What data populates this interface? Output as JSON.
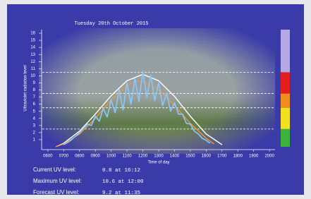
{
  "chart_data": {
    "type": "line",
    "title": "Tuesday 20th October 2015",
    "ylabel": "Ultraviolet radiation level",
    "xlabel": "Time of day",
    "xlim": [
      5.65,
      20.35
    ],
    "ylim": [
      0,
      16.5
    ],
    "xticks": [
      {
        "value": 6,
        "label": "0600"
      },
      {
        "value": 7,
        "label": "0700"
      },
      {
        "value": 8,
        "label": "0800"
      },
      {
        "value": 9,
        "label": "0900"
      },
      {
        "value": 10,
        "label": "1000"
      },
      {
        "value": 11,
        "label": "1100"
      },
      {
        "value": 12,
        "label": "1200"
      },
      {
        "value": 13,
        "label": "1300"
      },
      {
        "value": 14,
        "label": "1400"
      },
      {
        "value": 15,
        "label": "1500"
      },
      {
        "value": 16,
        "label": "1600"
      },
      {
        "value": 17,
        "label": "1700"
      },
      {
        "value": 18,
        "label": "1800"
      },
      {
        "value": 19,
        "label": "1900"
      },
      {
        "value": 20,
        "label": "2000"
      }
    ],
    "yticks": [
      1,
      2,
      3,
      4,
      5,
      6,
      7,
      8,
      9,
      10,
      11,
      12,
      13,
      14,
      15,
      16
    ],
    "uv_bands": [
      {
        "from": 0,
        "to": 2.5,
        "color": "#3cb43c"
      },
      {
        "from": 2.5,
        "to": 5.5,
        "color": "#f0e020"
      },
      {
        "from": 5.5,
        "to": 7.5,
        "color": "#f08c20"
      },
      {
        "from": 7.5,
        "to": 10.5,
        "color": "#e01e1e"
      },
      {
        "from": 10.5,
        "to": 16.5,
        "color": "#b4a8e8"
      }
    ],
    "series": [
      {
        "color": "#ffffff",
        "x": [
          6.5,
          7,
          8,
          9,
          10,
          11,
          12,
          13,
          14,
          15,
          16,
          17
        ],
        "values": [
          0,
          0.5,
          2.2,
          4.6,
          7.2,
          9.3,
          10.2,
          9.3,
          7.1,
          4.3,
          1.8,
          0.3
        ]
      },
      {
        "color": "#f0963c",
        "x": [
          6.5,
          7,
          8,
          9,
          10,
          11,
          11.5,
          12,
          13,
          14,
          15,
          16,
          16.5
        ],
        "values": [
          0,
          0.4,
          1.8,
          4.0,
          6.6,
          8.6,
          9.2,
          9.2,
          8.0,
          5.8,
          3.3,
          1.2,
          0.4
        ]
      },
      {
        "color": "#8cc8ff",
        "x": [
          7,
          7.25,
          7.5,
          7.75,
          8,
          8.25,
          8.5,
          8.75,
          9,
          9.25,
          9.5,
          9.75,
          10,
          10.25,
          10.5,
          10.75,
          11,
          11.25,
          11.5,
          11.75,
          12,
          12.25,
          12.5,
          12.75,
          13,
          13.25,
          13.5,
          13.75,
          14,
          14.25,
          14.5,
          14.75,
          15,
          15.25,
          15.5,
          15.75,
          16,
          16.25
        ],
        "values": [
          0.3,
          0.6,
          1.0,
          1.5,
          2.0,
          2.6,
          3.2,
          3.0,
          4.3,
          3.6,
          5.4,
          4.2,
          6.6,
          4.8,
          8.0,
          5.2,
          9.0,
          6.0,
          9.6,
          6.4,
          10.6,
          7.0,
          10.1,
          6.5,
          9.0,
          5.8,
          7.6,
          5.0,
          6.2,
          4.6,
          4.6,
          3.3,
          3.2,
          2.2,
          1.8,
          1.2,
          0.9,
          0.5
        ]
      }
    ]
  },
  "readings": [
    {
      "label": "Current UV level:",
      "value": "0.8 at 16:12"
    },
    {
      "label": "Maximum UV level:",
      "value": "10.6 at 12:00"
    },
    {
      "label": "Forecast UV level:",
      "value": "9.2 at 11:35"
    }
  ]
}
